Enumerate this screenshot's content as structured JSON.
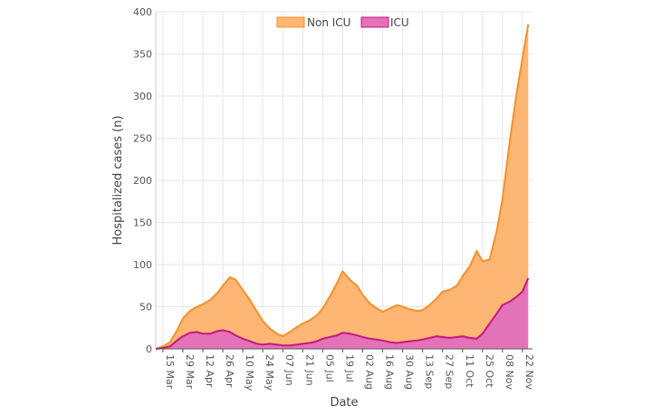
{
  "chart_data": {
    "type": "area",
    "xlabel": "Date",
    "ylabel": "Hospitalized cases (n)",
    "ylim": [
      0,
      400
    ],
    "yticks": [
      "0",
      "50",
      "100",
      "150",
      "200",
      "250",
      "300",
      "350",
      "400"
    ],
    "xticks": [
      "15 Mar",
      "29 Mar",
      "12 Apr",
      "26 Apr",
      "10 May",
      "24 May",
      "07 Jun",
      "21 Jun",
      "05 Jul",
      "19 Jul",
      "02 Aug",
      "16 Aug",
      "30 Aug",
      "13 Sep",
      "27 Sep",
      "11 Oct",
      "25 Oct",
      "08 Nov",
      "22 Nov"
    ],
    "grid": true,
    "stacked": true,
    "legend": "top-center",
    "x": [
      "2020-03-10",
      "2020-03-15",
      "2020-03-20",
      "2020-03-25",
      "2020-03-29",
      "2020-04-03",
      "2020-04-08",
      "2020-04-12",
      "2020-04-17",
      "2020-04-22",
      "2020-04-26",
      "2020-05-01",
      "2020-05-05",
      "2020-05-10",
      "2020-05-15",
      "2020-05-20",
      "2020-05-24",
      "2020-05-29",
      "2020-06-03",
      "2020-06-07",
      "2020-06-12",
      "2020-06-17",
      "2020-06-21",
      "2020-06-26",
      "2020-07-01",
      "2020-07-05",
      "2020-07-10",
      "2020-07-15",
      "2020-07-19",
      "2020-07-24",
      "2020-07-29",
      "2020-08-02",
      "2020-08-07",
      "2020-08-12",
      "2020-08-16",
      "2020-08-21",
      "2020-08-26",
      "2020-08-30",
      "2020-09-04",
      "2020-09-09",
      "2020-09-13",
      "2020-09-18",
      "2020-09-23",
      "2020-09-27",
      "2020-10-02",
      "2020-10-07",
      "2020-10-11",
      "2020-10-16",
      "2020-10-21",
      "2020-10-25",
      "2020-10-30",
      "2020-11-04",
      "2020-11-08",
      "2020-11-13",
      "2020-11-18",
      "2020-11-22",
      "2020-11-26"
    ],
    "series": [
      {
        "name": "Non ICU",
        "color": "#f5902a",
        "fill": "#fdb673",
        "total": [
          0,
          3,
          8,
          22,
          36,
          45,
          50,
          53,
          58,
          66,
          75,
          85,
          82,
          70,
          58,
          44,
          33,
          24,
          18,
          15,
          20,
          26,
          30,
          34,
          40,
          48,
          62,
          78,
          92,
          82,
          75,
          64,
          54,
          48,
          44,
          48,
          52,
          50,
          47,
          45,
          46,
          52,
          60,
          68,
          70,
          75,
          86,
          98,
          116,
          104,
          106,
          140,
          178,
          245,
          305,
          345,
          385
        ]
      },
      {
        "name": "ICU",
        "color": "#c9167f",
        "fill": "#e372b8",
        "values": [
          0,
          1,
          3,
          10,
          15,
          19,
          20,
          18,
          18,
          21,
          22,
          20,
          16,
          12,
          9,
          6,
          5,
          6,
          5,
          4,
          4,
          5,
          6,
          7,
          9,
          12,
          14,
          16,
          19,
          18,
          16,
          14,
          12,
          11,
          10,
          8,
          7,
          8,
          9,
          10,
          11,
          13,
          15,
          14,
          13,
          14,
          15,
          13,
          12,
          18,
          30,
          42,
          52,
          56,
          62,
          68,
          84
        ]
      }
    ]
  }
}
